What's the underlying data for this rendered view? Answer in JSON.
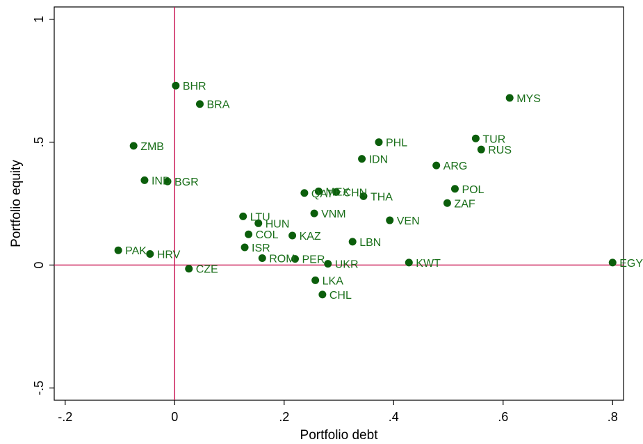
{
  "chart_data": {
    "type": "scatter",
    "title": "",
    "xlabel": "Portfolio debt",
    "ylabel": "Portfolio equity",
    "xlim": [
      -0.22,
      0.82
    ],
    "ylim": [
      -0.55,
      1.05
    ],
    "xticks": [
      {
        "value": -0.2,
        "label": "-.2"
      },
      {
        "value": 0,
        "label": "0"
      },
      {
        "value": 0.2,
        "label": ".2"
      },
      {
        "value": 0.4,
        "label": ".4"
      },
      {
        "value": 0.6,
        "label": ".6"
      },
      {
        "value": 0.8,
        "label": ".8"
      }
    ],
    "yticks": [
      {
        "value": -0.5,
        "label": "-.5"
      },
      {
        "value": 0,
        "label": "0"
      },
      {
        "value": 0.5,
        "label": ".5"
      },
      {
        "value": 1,
        "label": "1"
      }
    ],
    "grid": false,
    "reference_lines": {
      "x": 0,
      "y": 0,
      "color": "#c8104f"
    },
    "marker_color": "#0b5e0b",
    "label_color": "#1a6f1a",
    "points": [
      {
        "label": "BHR",
        "x": 0.002,
        "y": 0.73
      },
      {
        "label": "BRA",
        "x": 0.046,
        "y": 0.655
      },
      {
        "label": "MYS",
        "x": 0.612,
        "y": 0.68
      },
      {
        "label": "ZMB",
        "x": -0.075,
        "y": 0.485
      },
      {
        "label": "PHL",
        "x": 0.373,
        "y": 0.5
      },
      {
        "label": "TUR",
        "x": 0.55,
        "y": 0.515
      },
      {
        "label": "RUS",
        "x": 0.56,
        "y": 0.47
      },
      {
        "label": "IDN",
        "x": 0.342,
        "y": 0.432
      },
      {
        "label": "ARG",
        "x": 0.478,
        "y": 0.405
      },
      {
        "label": "IND",
        "x": -0.055,
        "y": 0.345
      },
      {
        "label": "BGR",
        "x": -0.013,
        "y": 0.34
      },
      {
        "label": "POL",
        "x": 0.512,
        "y": 0.31
      },
      {
        "label": "QAT",
        "x": 0.237,
        "y": 0.293
      },
      {
        "label": "MEX",
        "x": 0.263,
        "y": 0.3
      },
      {
        "label": "CHN",
        "x": 0.295,
        "y": 0.297
      },
      {
        "label": "THA",
        "x": 0.345,
        "y": 0.28
      },
      {
        "label": "ZAF",
        "x": 0.498,
        "y": 0.252
      },
      {
        "label": "VNM",
        "x": 0.255,
        "y": 0.21
      },
      {
        "label": "LTU",
        "x": 0.125,
        "y": 0.198
      },
      {
        "label": "HUN",
        "x": 0.153,
        "y": 0.17
      },
      {
        "label": "VEN",
        "x": 0.393,
        "y": 0.182
      },
      {
        "label": "COL",
        "x": 0.135,
        "y": 0.125
      },
      {
        "label": "KAZ",
        "x": 0.215,
        "y": 0.12
      },
      {
        "label": "LBN",
        "x": 0.325,
        "y": 0.095
      },
      {
        "label": "ISR",
        "x": 0.128,
        "y": 0.072
      },
      {
        "label": "PAK",
        "x": -0.103,
        "y": 0.06
      },
      {
        "label": "HRV",
        "x": -0.045,
        "y": 0.045
      },
      {
        "label": "ROM",
        "x": 0.16,
        "y": 0.028
      },
      {
        "label": "PER",
        "x": 0.22,
        "y": 0.025
      },
      {
        "label": "UKR",
        "x": 0.28,
        "y": 0.005
      },
      {
        "label": "KWT",
        "x": 0.428,
        "y": 0.01
      },
      {
        "label": "EGY",
        "x": 0.8,
        "y": 0.01
      },
      {
        "label": "CZE",
        "x": 0.026,
        "y": -0.015
      },
      {
        "label": "LKA",
        "x": 0.257,
        "y": -0.062
      },
      {
        "label": "CHL",
        "x": 0.27,
        "y": -0.12
      }
    ]
  }
}
